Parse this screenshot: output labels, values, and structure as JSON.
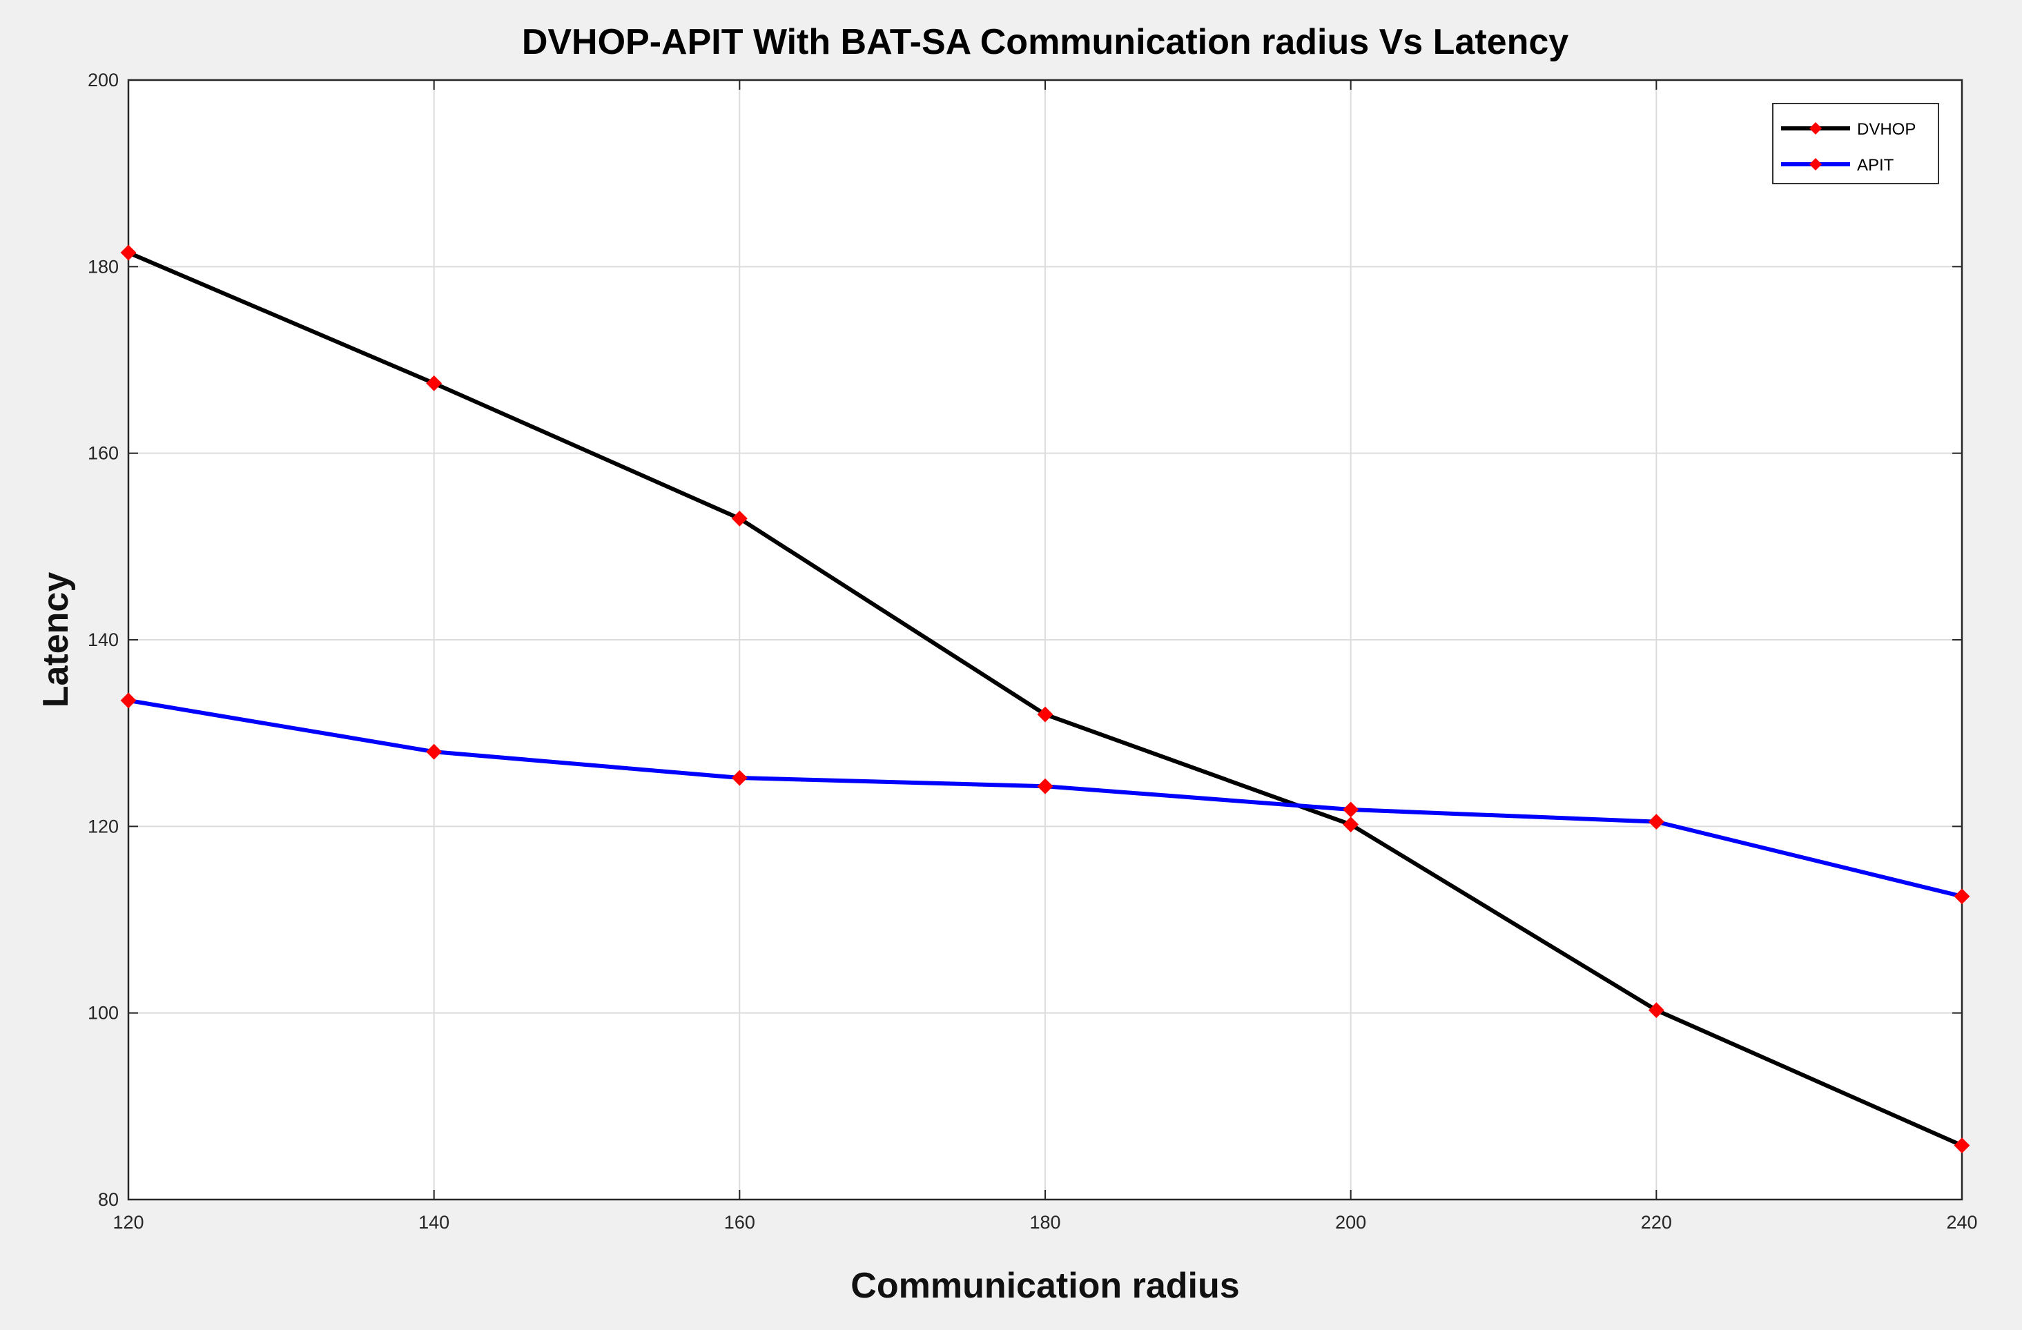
{
  "chart_data": {
    "type": "line",
    "title": "DVHOP-APIT With BAT-SA Communication radius Vs Latency",
    "xlabel": "Communication radius",
    "ylabel": "Latency",
    "x": [
      120,
      140,
      160,
      180,
      200,
      220,
      240
    ],
    "xlim": [
      120,
      240
    ],
    "ylim": [
      80,
      200
    ],
    "xticks": [
      "120",
      "140",
      "160",
      "180",
      "200",
      "220",
      "240"
    ],
    "yticks": [
      "80",
      "100",
      "120",
      "140",
      "160",
      "180",
      "200"
    ],
    "grid": true,
    "legend_position": "top-right",
    "marker_color": "#ff0000",
    "series": [
      {
        "name": "DVHOP",
        "color": "#000000",
        "values": [
          181.5,
          167.5,
          153,
          132,
          120.2,
          100.3,
          85.8
        ]
      },
      {
        "name": "APIT",
        "color": "#0000ff",
        "values": [
          133.5,
          128,
          125.2,
          124.3,
          121.8,
          120.5,
          112.5
        ]
      }
    ]
  }
}
